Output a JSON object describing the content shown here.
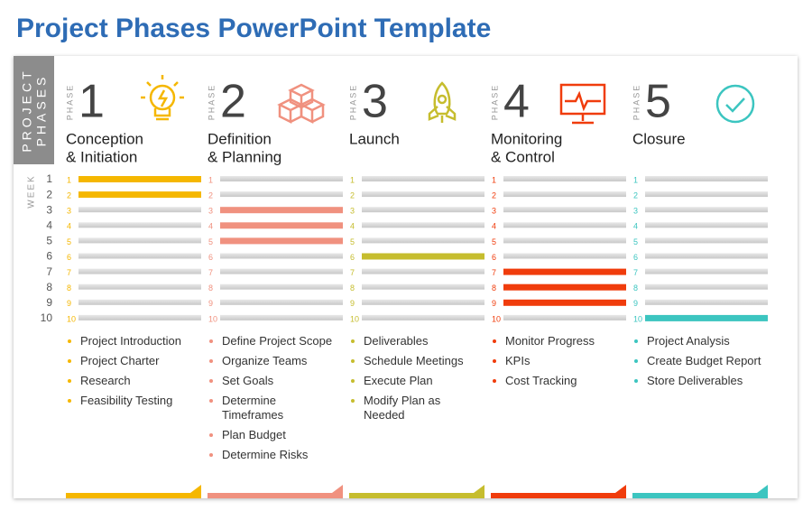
{
  "title": "Project Phases PowerPoint Template",
  "side_label": [
    "PROJECT",
    "PHASES"
  ],
  "week_label": "WEEK",
  "weeks": [
    "1",
    "2",
    "3",
    "4",
    "5",
    "6",
    "7",
    "8",
    "9",
    "10"
  ],
  "phases": [
    {
      "phase_label": "PHASE",
      "number": "1",
      "name": [
        "Conception",
        "& Initiation"
      ],
      "color": "#f5b700",
      "active_weeks": [
        1,
        2
      ],
      "tasks": [
        "Project Introduction",
        "Project Charter",
        "Research",
        "Feasibility Testing"
      ]
    },
    {
      "phase_label": "PHASE",
      "number": "2",
      "name": [
        "Definition",
        "& Planning"
      ],
      "color": "#f0917f",
      "active_weeks": [
        3,
        4,
        5
      ],
      "tasks": [
        "Define Project Scope",
        "Organize Teams",
        "Set Goals",
        "Determine Timeframes",
        "Plan Budget",
        "Determine Risks"
      ]
    },
    {
      "phase_label": "PHASE",
      "number": "3",
      "name": [
        "Launch"
      ],
      "color": "#c6bd2e",
      "active_weeks": [
        6
      ],
      "tasks": [
        "Deliverables",
        "Schedule Meetings",
        "Execute Plan",
        "Modify Plan as Needed"
      ]
    },
    {
      "phase_label": "PHASE",
      "number": "4",
      "name": [
        "Monitoring",
        "& Control"
      ],
      "color": "#f03c0c",
      "active_weeks": [
        7,
        8,
        9
      ],
      "tasks": [
        "Monitor Progress",
        "KPIs",
        "Cost Tracking"
      ]
    },
    {
      "phase_label": "PHASE",
      "number": "5",
      "name": [
        "Closure"
      ],
      "color": "#3cc5c0",
      "active_weeks": [
        10
      ],
      "tasks": [
        "Project Analysis",
        "Create Budget Report",
        "Store Deliverables"
      ]
    }
  ]
}
